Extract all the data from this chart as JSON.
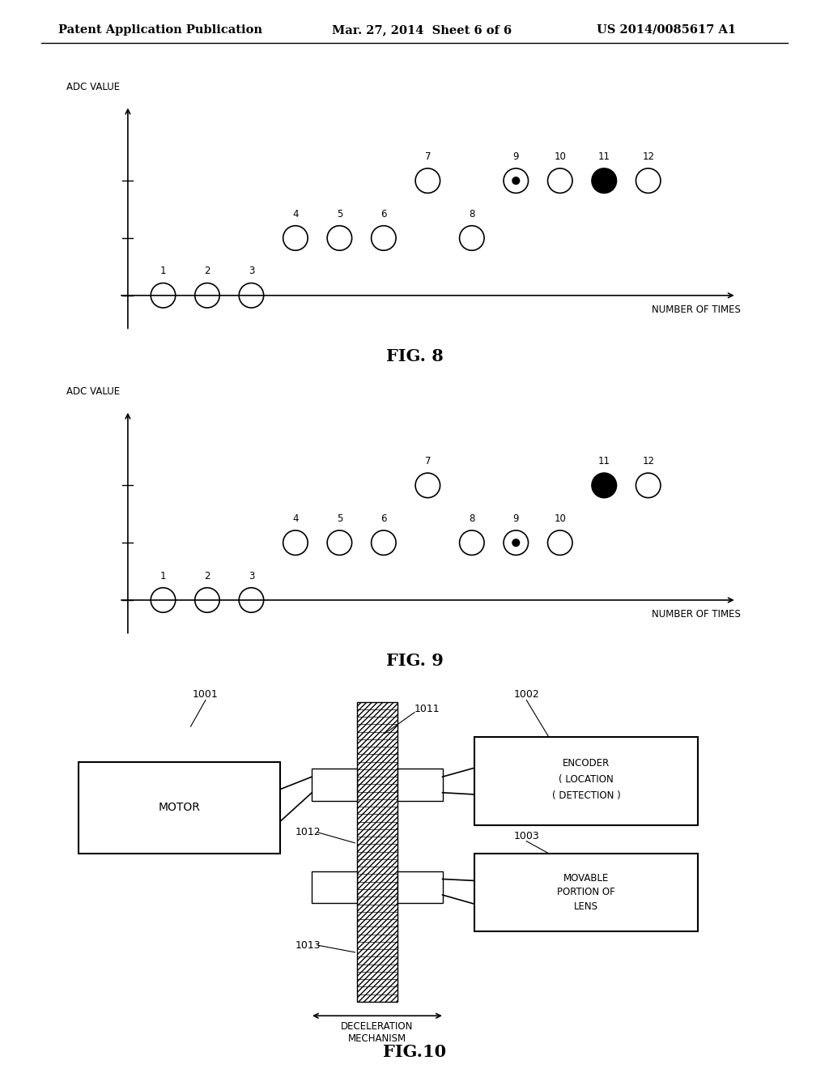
{
  "bg_color": "#ffffff",
  "header_left": "Patent Application Publication",
  "header_center": "Mar. 27, 2014  Sheet 6 of 6",
  "header_right": "US 2014/0085617 A1",
  "fig8_title": "FIG. 8",
  "fig9_title": "FIG. 9",
  "fig10_title": "FIG.10",
  "fig8": {
    "adc_label": "ADC VALUE",
    "x_label": "NUMBER OF TIMES",
    "points": [
      {
        "n": 1,
        "row": 0,
        "style": "open"
      },
      {
        "n": 2,
        "row": 0,
        "style": "open"
      },
      {
        "n": 3,
        "row": 0,
        "style": "open"
      },
      {
        "n": 4,
        "row": 1,
        "style": "open"
      },
      {
        "n": 5,
        "row": 1,
        "style": "open"
      },
      {
        "n": 6,
        "row": 1,
        "style": "open"
      },
      {
        "n": 7,
        "row": 2,
        "style": "open"
      },
      {
        "n": 8,
        "row": 1,
        "style": "open"
      },
      {
        "n": 9,
        "row": 2,
        "style": "dotted_open"
      },
      {
        "n": 10,
        "row": 2,
        "style": "open"
      },
      {
        "n": 11,
        "row": 2,
        "style": "filled"
      },
      {
        "n": 12,
        "row": 2,
        "style": "open"
      }
    ]
  },
  "fig9": {
    "adc_label": "ADC VALUE",
    "x_label": "NUMBER OF TIMES",
    "points": [
      {
        "n": 1,
        "row": 0,
        "style": "open"
      },
      {
        "n": 2,
        "row": 0,
        "style": "open"
      },
      {
        "n": 3,
        "row": 0,
        "style": "open"
      },
      {
        "n": 4,
        "row": 1,
        "style": "open"
      },
      {
        "n": 5,
        "row": 1,
        "style": "open"
      },
      {
        "n": 6,
        "row": 1,
        "style": "open"
      },
      {
        "n": 7,
        "row": 2,
        "style": "open"
      },
      {
        "n": 8,
        "row": 1,
        "style": "open"
      },
      {
        "n": 9,
        "row": 1,
        "style": "dotted_open"
      },
      {
        "n": 10,
        "row": 1,
        "style": "open"
      },
      {
        "n": 11,
        "row": 2,
        "style": "filled"
      },
      {
        "n": 12,
        "row": 2,
        "style": "open"
      }
    ]
  },
  "fig10": {
    "motor_label": "MOTOR",
    "motor_ref": "1001",
    "encoder_lines": [
      "ENCODER",
      "( LOCATION",
      "( DETECTION )"
    ],
    "encoder_ref": "1002",
    "lens_lines": [
      "MOVABLE",
      "PORTION OF",
      "LENS"
    ],
    "lens_ref": "1003",
    "gear1_ref": "1011",
    "gear2_ref": "1012",
    "gear3_ref": "1013",
    "decel_label": "DECELERATION\nMECHANISM"
  }
}
